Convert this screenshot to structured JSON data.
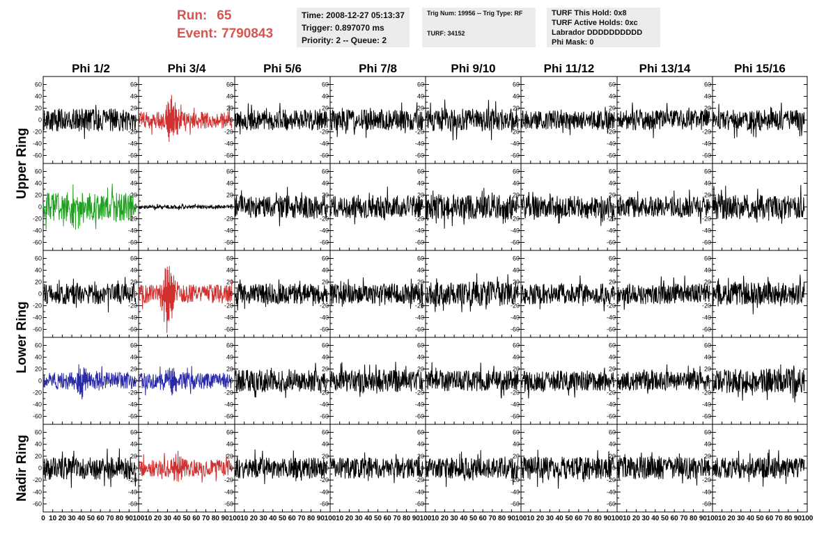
{
  "header": {
    "run_label": "Run:",
    "run_value": "65",
    "event_label": "Event:",
    "event_value": "7790843"
  },
  "info_box_1": {
    "time": "Time: 2008-12-27 05:13:37",
    "trigger": "Trigger: 0.897070 ms",
    "priority": "Priority: 2 -- Queue: 2"
  },
  "info_box_2": {
    "trig": "Trig Num: 19956 -- Trig Type: RF",
    "turf": "TURF: 34152"
  },
  "info_box_3": {
    "this_hold": "TURF This Hold: 0x8",
    "active_holds": "TURF Active Holds: 0xc",
    "labrador": "Labrador DDDDDDDDDD",
    "phi_mask": "Phi Mask: 0"
  },
  "colors": {
    "red": "#d03030",
    "green": "#20a020",
    "blue": "#2a2aa8",
    "black": "#000000",
    "title_red": "#d9534f"
  },
  "chart_data": {
    "type": "line",
    "columns": [
      "Phi 1/2",
      "Phi 3/4",
      "Phi 5/6",
      "Phi 7/8",
      "Phi 9/10",
      "Phi 11/12",
      "Phi 13/14",
      "Phi 15/16"
    ],
    "row_labels": [
      "Upper Ring",
      "Lower Ring",
      "Nadir Ring"
    ],
    "row_count": 5,
    "ylim": [
      -70,
      70
    ],
    "yticks": [
      -60,
      -40,
      -20,
      0,
      20,
      40,
      60
    ],
    "xlim": [
      0,
      100
    ],
    "xticks": [
      0,
      10,
      20,
      30,
      40,
      50,
      60,
      70,
      80,
      90,
      100
    ],
    "x_tick_labels_by_column": [
      [
        "0",
        "10",
        "20",
        "30",
        "40",
        "50",
        "60",
        "70",
        "80",
        "90",
        "100"
      ],
      [
        "10",
        "20",
        "30",
        "40",
        "50",
        "60",
        "70",
        "80",
        "90",
        "100"
      ],
      [
        "10",
        "20",
        "30",
        "40",
        "50",
        "60",
        "70",
        "80",
        "90",
        "100"
      ],
      [
        "10",
        "20",
        "30",
        "40",
        "50",
        "60",
        "70",
        "80",
        "90",
        "100"
      ],
      [
        "10",
        "20",
        "30",
        "40",
        "50",
        "60",
        "70",
        "80",
        "90",
        "100"
      ],
      [
        "10",
        "20",
        "30",
        "40",
        "50",
        "60",
        "70",
        "80",
        "90",
        "100"
      ],
      [
        "10",
        "20",
        "30",
        "40",
        "50",
        "60",
        "70",
        "80",
        "90",
        "100"
      ],
      [
        "10",
        "20",
        "30",
        "40",
        "50",
        "60",
        "70",
        "80",
        "90",
        "100"
      ]
    ],
    "grid": false,
    "traces": [
      {
        "row": 0,
        "col": 0,
        "color": "black",
        "amplitude": 12,
        "burst_center": 0,
        "burst_amp": 0,
        "seed": 1
      },
      {
        "row": 0,
        "col": 1,
        "color": "red",
        "amplitude": 9,
        "burst_center": 35,
        "burst_amp": 28,
        "seed": 2
      },
      {
        "row": 0,
        "col": 2,
        "color": "black",
        "amplitude": 11,
        "burst_center": 0,
        "burst_amp": 0,
        "seed": 3
      },
      {
        "row": 0,
        "col": 3,
        "color": "black",
        "amplitude": 11,
        "burst_center": 0,
        "burst_amp": 0,
        "seed": 4
      },
      {
        "row": 0,
        "col": 4,
        "color": "black",
        "amplitude": 12,
        "burst_center": 0,
        "burst_amp": 0,
        "seed": 5
      },
      {
        "row": 0,
        "col": 5,
        "color": "black",
        "amplitude": 10,
        "burst_center": 0,
        "burst_amp": 0,
        "seed": 6
      },
      {
        "row": 0,
        "col": 6,
        "color": "black",
        "amplitude": 11,
        "burst_center": 0,
        "burst_amp": 0,
        "seed": 7
      },
      {
        "row": 0,
        "col": 7,
        "color": "black",
        "amplitude": 11,
        "burst_center": 0,
        "burst_amp": 0,
        "seed": 8
      },
      {
        "row": 1,
        "col": 0,
        "color": "green",
        "amplitude": 15,
        "burst_center": 35,
        "burst_amp": 20,
        "seed": 9
      },
      {
        "row": 1,
        "col": 1,
        "color": "black",
        "amplitude": 2,
        "burst_center": 0,
        "burst_amp": 0,
        "seed": 10
      },
      {
        "row": 1,
        "col": 2,
        "color": "black",
        "amplitude": 12,
        "burst_center": 0,
        "burst_amp": 0,
        "seed": 11
      },
      {
        "row": 1,
        "col": 3,
        "color": "black",
        "amplitude": 12,
        "burst_center": 0,
        "burst_amp": 0,
        "seed": 12
      },
      {
        "row": 1,
        "col": 4,
        "color": "black",
        "amplitude": 13,
        "burst_center": 0,
        "burst_amp": 0,
        "seed": 13
      },
      {
        "row": 1,
        "col": 5,
        "color": "black",
        "amplitude": 12,
        "burst_center": 0,
        "burst_amp": 0,
        "seed": 14
      },
      {
        "row": 1,
        "col": 6,
        "color": "black",
        "amplitude": 11,
        "burst_center": 0,
        "burst_amp": 0,
        "seed": 15
      },
      {
        "row": 1,
        "col": 7,
        "color": "black",
        "amplitude": 13,
        "burst_center": 0,
        "burst_amp": 0,
        "seed": 16
      },
      {
        "row": 2,
        "col": 0,
        "color": "black",
        "amplitude": 11,
        "burst_center": 0,
        "burst_amp": 0,
        "seed": 17
      },
      {
        "row": 2,
        "col": 1,
        "color": "red",
        "amplitude": 10,
        "burst_center": 30,
        "burst_amp": 45,
        "seed": 18
      },
      {
        "row": 2,
        "col": 2,
        "color": "black",
        "amplitude": 11,
        "burst_center": 0,
        "burst_amp": 0,
        "seed": 19
      },
      {
        "row": 2,
        "col": 3,
        "color": "black",
        "amplitude": 11,
        "burst_center": 0,
        "burst_amp": 0,
        "seed": 20
      },
      {
        "row": 2,
        "col": 4,
        "color": "black",
        "amplitude": 13,
        "burst_center": 0,
        "burst_amp": 0,
        "seed": 21
      },
      {
        "row": 2,
        "col": 5,
        "color": "black",
        "amplitude": 11,
        "burst_center": 0,
        "burst_amp": 0,
        "seed": 22
      },
      {
        "row": 2,
        "col": 6,
        "color": "black",
        "amplitude": 11,
        "burst_center": 0,
        "burst_amp": 0,
        "seed": 23
      },
      {
        "row": 2,
        "col": 7,
        "color": "black",
        "amplitude": 12,
        "burst_center": 0,
        "burst_amp": 0,
        "seed": 24
      },
      {
        "row": 3,
        "col": 0,
        "color": "blue",
        "amplitude": 9,
        "burst_center": 40,
        "burst_amp": 18,
        "seed": 25
      },
      {
        "row": 3,
        "col": 1,
        "color": "blue",
        "amplitude": 9,
        "burst_center": 35,
        "burst_amp": 18,
        "seed": 26
      },
      {
        "row": 3,
        "col": 2,
        "color": "black",
        "amplitude": 12,
        "burst_center": 0,
        "burst_amp": 0,
        "seed": 27
      },
      {
        "row": 3,
        "col": 3,
        "color": "black",
        "amplitude": 12,
        "burst_center": 0,
        "burst_amp": 0,
        "seed": 28
      },
      {
        "row": 3,
        "col": 4,
        "color": "black",
        "amplitude": 11,
        "burst_center": 0,
        "burst_amp": 0,
        "seed": 29
      },
      {
        "row": 3,
        "col": 5,
        "color": "black",
        "amplitude": 11,
        "burst_center": 0,
        "burst_amp": 0,
        "seed": 30
      },
      {
        "row": 3,
        "col": 6,
        "color": "black",
        "amplitude": 10,
        "burst_center": 0,
        "burst_amp": 0,
        "seed": 31
      },
      {
        "row": 3,
        "col": 7,
        "color": "black",
        "amplitude": 13,
        "burst_center": 0,
        "burst_amp": 0,
        "seed": 32
      },
      {
        "row": 4,
        "col": 0,
        "color": "black",
        "amplitude": 12,
        "burst_center": 0,
        "burst_amp": 0,
        "seed": 33
      },
      {
        "row": 4,
        "col": 1,
        "color": "red",
        "amplitude": 9,
        "burst_center": 40,
        "burst_amp": 14,
        "seed": 34
      },
      {
        "row": 4,
        "col": 2,
        "color": "black",
        "amplitude": 11,
        "burst_center": 0,
        "burst_amp": 0,
        "seed": 35
      },
      {
        "row": 4,
        "col": 3,
        "color": "black",
        "amplitude": 11,
        "burst_center": 0,
        "burst_amp": 0,
        "seed": 36
      },
      {
        "row": 4,
        "col": 4,
        "color": "black",
        "amplitude": 11,
        "burst_center": 0,
        "burst_amp": 0,
        "seed": 37
      },
      {
        "row": 4,
        "col": 5,
        "color": "black",
        "amplitude": 12,
        "burst_center": 0,
        "burst_amp": 0,
        "seed": 38
      },
      {
        "row": 4,
        "col": 6,
        "color": "black",
        "amplitude": 12,
        "burst_center": 0,
        "burst_amp": 0,
        "seed": 39
      },
      {
        "row": 4,
        "col": 7,
        "color": "black",
        "amplitude": 11,
        "burst_center": 0,
        "burst_amp": 0,
        "seed": 40
      }
    ]
  }
}
